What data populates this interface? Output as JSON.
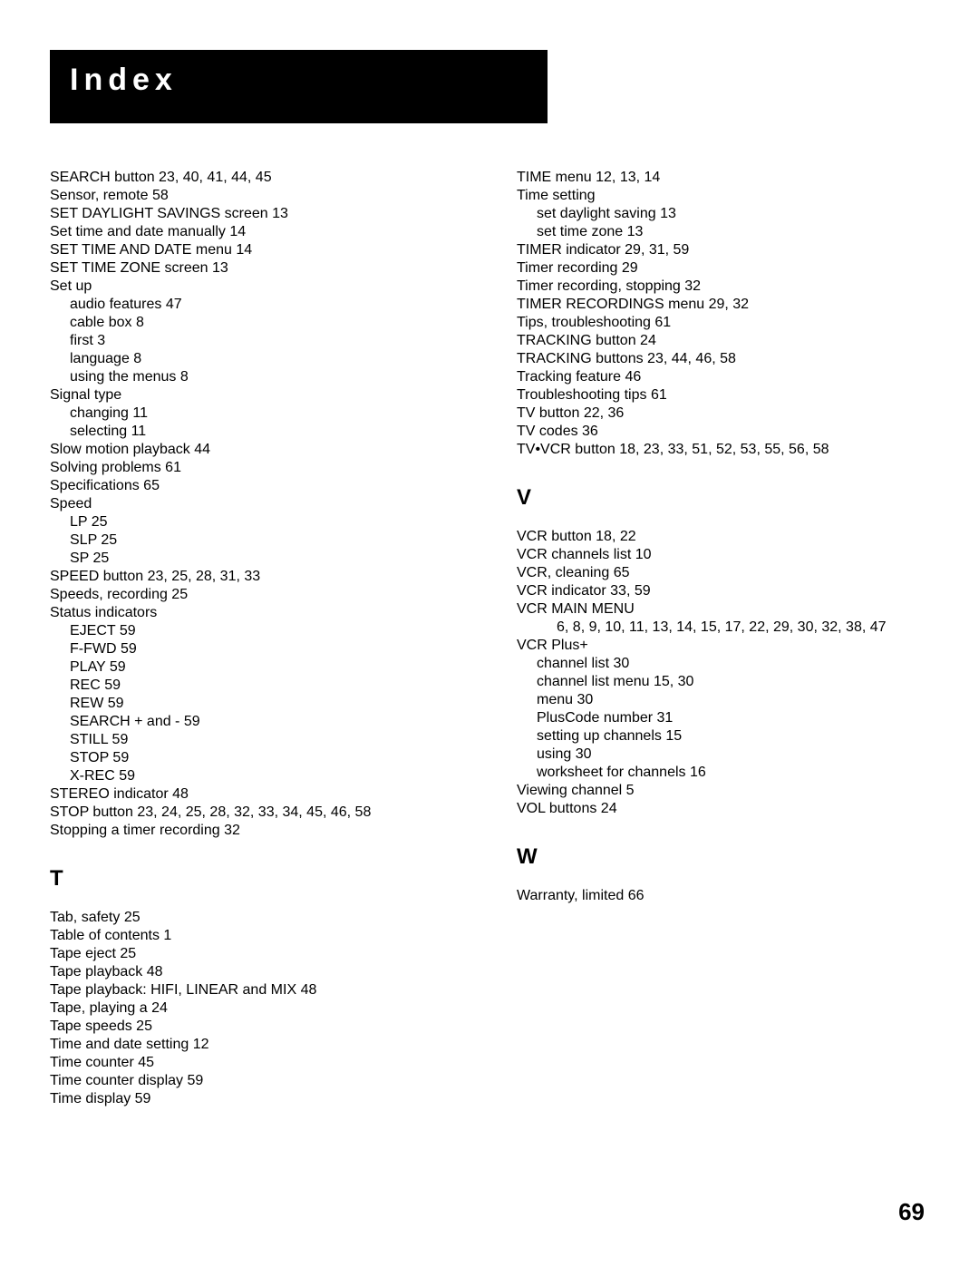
{
  "header": "Index",
  "page_number": "69",
  "columns": [
    {
      "items": [
        {
          "text": "SEARCH button  23, 40, 41, 44, 45",
          "indent": 0
        },
        {
          "text": "Sensor, remote  58",
          "indent": 0
        },
        {
          "text": "SET DAYLIGHT SAVINGS screen  13",
          "indent": 0
        },
        {
          "text": "Set time and date manually  14",
          "indent": 0
        },
        {
          "text": "SET TIME AND DATE menu  14",
          "indent": 0
        },
        {
          "text": "SET TIME ZONE screen  13",
          "indent": 0
        },
        {
          "text": "Set up",
          "indent": 0
        },
        {
          "text": "audio features  47",
          "indent": 1
        },
        {
          "text": "cable box  8",
          "indent": 1
        },
        {
          "text": "first  3",
          "indent": 1
        },
        {
          "text": "language  8",
          "indent": 1
        },
        {
          "text": "using the menus  8",
          "indent": 1
        },
        {
          "text": "Signal type",
          "indent": 0
        },
        {
          "text": "changing  11",
          "indent": 1
        },
        {
          "text": "selecting  11",
          "indent": 1
        },
        {
          "text": "Slow motion playback  44",
          "indent": 0
        },
        {
          "text": "Solving problems  61",
          "indent": 0
        },
        {
          "text": "Specifications  65",
          "indent": 0
        },
        {
          "text": "Speed",
          "indent": 0
        },
        {
          "text": "LP  25",
          "indent": 1
        },
        {
          "text": "SLP  25",
          "indent": 1
        },
        {
          "text": "SP  25",
          "indent": 1
        },
        {
          "text": "SPEED button  23, 25, 28, 31, 33",
          "indent": 0
        },
        {
          "text": "Speeds, recording  25",
          "indent": 0
        },
        {
          "text": "Status indicators",
          "indent": 0
        },
        {
          "text": "EJECT  59",
          "indent": 1
        },
        {
          "text": "F-FWD  59",
          "indent": 1
        },
        {
          "text": "PLAY  59",
          "indent": 1
        },
        {
          "text": "REC  59",
          "indent": 1
        },
        {
          "text": "REW  59",
          "indent": 1
        },
        {
          "text": "SEARCH + and -  59",
          "indent": 1
        },
        {
          "text": "STILL  59",
          "indent": 1
        },
        {
          "text": "STOP  59",
          "indent": 1
        },
        {
          "text": "X-REC  59",
          "indent": 1
        },
        {
          "text": "STEREO indicator  48",
          "indent": 0
        },
        {
          "text": "STOP button  23, 24, 25, 28, 32, 33, 34, 45, 46, 58",
          "indent": 0
        },
        {
          "text": "Stopping a timer recording  32",
          "indent": 0
        },
        {
          "text": "T",
          "section": true
        },
        {
          "text": "Tab, safety  25",
          "indent": 0
        },
        {
          "text": "Table of contents  1",
          "indent": 0
        },
        {
          "text": "Tape eject  25",
          "indent": 0
        },
        {
          "text": "Tape playback  48",
          "indent": 0
        },
        {
          "text": "Tape playback: HIFI, LINEAR and MIX  48",
          "indent": 0
        },
        {
          "text": "Tape, playing a  24",
          "indent": 0
        },
        {
          "text": "Tape speeds  25",
          "indent": 0
        },
        {
          "text": "Time and date setting  12",
          "indent": 0
        },
        {
          "text": "Time counter  45",
          "indent": 0
        },
        {
          "text": "Time counter display  59",
          "indent": 0
        },
        {
          "text": "Time display  59",
          "indent": 0
        }
      ]
    },
    {
      "items": [
        {
          "text": "TIME menu  12, 13, 14",
          "indent": 0
        },
        {
          "text": "Time setting",
          "indent": 0
        },
        {
          "text": "set daylight saving  13",
          "indent": 1
        },
        {
          "text": "set time zone  13",
          "indent": 1
        },
        {
          "text": "TIMER indicator  29, 31, 59",
          "indent": 0
        },
        {
          "text": "Timer recording  29",
          "indent": 0
        },
        {
          "text": "Timer recording, stopping  32",
          "indent": 0
        },
        {
          "text": "TIMER RECORDINGS menu  29, 32",
          "indent": 0
        },
        {
          "text": "Tips, troubleshooting  61",
          "indent": 0
        },
        {
          "text": "TRACKING button  24",
          "indent": 0
        },
        {
          "text": "TRACKING buttons  23, 44, 46, 58",
          "indent": 0
        },
        {
          "text": "Tracking feature  46",
          "indent": 0
        },
        {
          "text": "Troubleshooting tips  61",
          "indent": 0
        },
        {
          "text": "TV button  22, 36",
          "indent": 0
        },
        {
          "text": "TV codes  36",
          "indent": 0
        },
        {
          "text": "TV•VCR button  18, 23, 33, 51, 52, 53, 55, 56, 58",
          "indent": 0
        },
        {
          "text": "V",
          "section": true
        },
        {
          "text": "VCR button  18, 22",
          "indent": 0
        },
        {
          "text": "VCR channels list  10",
          "indent": 0
        },
        {
          "text": "VCR, cleaning  65",
          "indent": 0
        },
        {
          "text": "VCR indicator  33, 59",
          "indent": 0
        },
        {
          "text": "VCR MAIN MENU",
          "indent": 0
        },
        {
          "text": "6, 8, 9, 10, 11, 13, 14, 15, 17, 22, 29, 30, 32, 38, 47",
          "indent": 2
        },
        {
          "text": "VCR Plus+",
          "indent": 0
        },
        {
          "text": "channel list  30",
          "indent": 1
        },
        {
          "text": "channel list menu  15, 30",
          "indent": 1
        },
        {
          "text": "menu  30",
          "indent": 1
        },
        {
          "text": "PlusCode number  31",
          "indent": 1
        },
        {
          "text": "setting up channels  15",
          "indent": 1
        },
        {
          "text": "using  30",
          "indent": 1
        },
        {
          "text": "worksheet for channels  16",
          "indent": 1
        },
        {
          "text": "Viewing channel  5",
          "indent": 0
        },
        {
          "text": "VOL buttons  24",
          "indent": 0
        },
        {
          "text": "W",
          "section": true
        },
        {
          "text": "Warranty, limited  66",
          "indent": 0
        }
      ]
    }
  ]
}
